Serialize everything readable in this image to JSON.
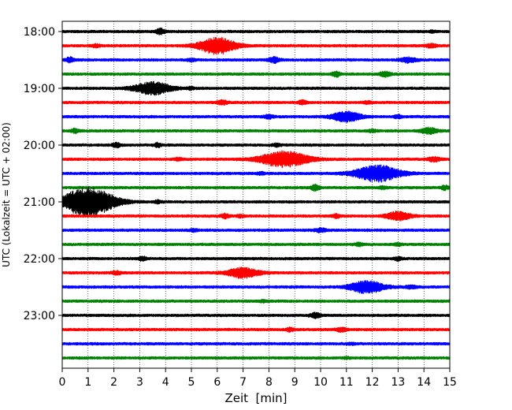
{
  "chart_data": {
    "type": "line",
    "title": "",
    "xlabel": "Zeit  [min]",
    "ylabel": "UTC (Lokalzeit = UTC + 02:00)",
    "xlim": [
      0,
      15
    ],
    "x_ticks": [
      "0",
      "1",
      "2",
      "3",
      "4",
      "5",
      "6",
      "7",
      "8",
      "9",
      "10",
      "11",
      "12",
      "13",
      "14",
      "15"
    ],
    "y_ticks": [
      "18:00",
      "19:00",
      "20:00",
      "21:00",
      "22:00",
      "23:00"
    ],
    "grid": "vertical dotted lines at every minute",
    "trace_interval_min": 15,
    "trace_color_cycle": [
      "#000000",
      "#ff0000",
      "#0000ff",
      "#008000"
    ],
    "traces": [
      {
        "start": "18:00",
        "bursts": [
          {
            "t": 3.8,
            "amp": 0.7,
            "dur": 0.35
          },
          {
            "t": 14.3,
            "amp": 0.25,
            "dur": 0.2
          }
        ]
      },
      {
        "start": "18:15",
        "bursts": [
          {
            "t": 6.0,
            "amp": 2.0,
            "dur": 1.4
          },
          {
            "t": 1.3,
            "amp": 0.3,
            "dur": 0.3
          },
          {
            "t": 14.3,
            "amp": 0.4,
            "dur": 0.4
          }
        ]
      },
      {
        "start": "18:30",
        "bursts": [
          {
            "t": 0.3,
            "amp": 0.6,
            "dur": 0.3
          },
          {
            "t": 8.2,
            "amp": 0.6,
            "dur": 0.4
          },
          {
            "t": 13.4,
            "amp": 0.55,
            "dur": 0.6
          },
          {
            "t": 5.0,
            "amp": 0.3,
            "dur": 0.3
          }
        ]
      },
      {
        "start": "18:45",
        "bursts": [
          {
            "t": 10.6,
            "amp": 0.6,
            "dur": 0.3
          },
          {
            "t": 12.5,
            "amp": 0.6,
            "dur": 0.4
          }
        ]
      },
      {
        "start": "19:00",
        "bursts": [
          {
            "t": 3.5,
            "amp": 1.5,
            "dur": 1.4
          },
          {
            "t": 5.0,
            "amp": 0.25,
            "dur": 0.3
          }
        ]
      },
      {
        "start": "19:15",
        "bursts": [
          {
            "t": 6.2,
            "amp": 0.5,
            "dur": 0.4
          },
          {
            "t": 9.3,
            "amp": 0.45,
            "dur": 0.3
          },
          {
            "t": 11.8,
            "amp": 0.3,
            "dur": 0.3
          }
        ]
      },
      {
        "start": "19:30",
        "bursts": [
          {
            "t": 11.0,
            "amp": 1.2,
            "dur": 1.1
          },
          {
            "t": 8.0,
            "amp": 0.4,
            "dur": 0.4
          },
          {
            "t": 13.0,
            "amp": 0.35,
            "dur": 0.3
          }
        ]
      },
      {
        "start": "19:45",
        "bursts": [
          {
            "t": 0.5,
            "amp": 0.5,
            "dur": 0.3
          },
          {
            "t": 12.0,
            "amp": 0.3,
            "dur": 0.3
          },
          {
            "t": 14.2,
            "amp": 0.7,
            "dur": 0.6
          }
        ]
      },
      {
        "start": "20:00",
        "bursts": [
          {
            "t": 2.1,
            "amp": 0.45,
            "dur": 0.3
          },
          {
            "t": 3.7,
            "amp": 0.5,
            "dur": 0.25
          },
          {
            "t": 8.3,
            "amp": 0.3,
            "dur": 0.3
          }
        ]
      },
      {
        "start": "20:15",
        "bursts": [
          {
            "t": 8.6,
            "amp": 1.9,
            "dur": 1.8
          },
          {
            "t": 4.5,
            "amp": 0.3,
            "dur": 0.3
          },
          {
            "t": 14.4,
            "amp": 0.45,
            "dur": 0.5
          }
        ]
      },
      {
        "start": "20:30",
        "bursts": [
          {
            "t": 12.2,
            "amp": 2.0,
            "dur": 1.7
          },
          {
            "t": 7.7,
            "amp": 0.3,
            "dur": 0.3
          }
        ]
      },
      {
        "start": "20:45",
        "bursts": [
          {
            "t": 9.8,
            "amp": 0.7,
            "dur": 0.3
          },
          {
            "t": 14.8,
            "amp": 0.45,
            "dur": 0.3
          },
          {
            "t": 12.4,
            "amp": 0.3,
            "dur": 0.3
          }
        ]
      },
      {
        "start": "21:00",
        "bursts": [
          {
            "t": 1.0,
            "amp": 3.5,
            "dur": 2.0
          },
          {
            "t": 3.7,
            "amp": 0.35,
            "dur": 0.25
          }
        ]
      },
      {
        "start": "21:15",
        "bursts": [
          {
            "t": 13.0,
            "amp": 1.0,
            "dur": 0.9
          },
          {
            "t": 6.3,
            "amp": 0.5,
            "dur": 0.3
          },
          {
            "t": 10.6,
            "amp": 0.4,
            "dur": 0.3
          },
          {
            "t": 6.9,
            "amp": 0.3,
            "dur": 0.25
          }
        ]
      },
      {
        "start": "21:30",
        "bursts": [
          {
            "t": 10.0,
            "amp": 0.45,
            "dur": 0.4
          },
          {
            "t": 5.1,
            "amp": 0.3,
            "dur": 0.3
          }
        ]
      },
      {
        "start": "21:45",
        "bursts": [
          {
            "t": 11.5,
            "amp": 0.35,
            "dur": 0.3
          },
          {
            "t": 13.0,
            "amp": 0.3,
            "dur": 0.3
          }
        ]
      },
      {
        "start": "22:00",
        "bursts": [
          {
            "t": 3.1,
            "amp": 0.5,
            "dur": 0.3
          },
          {
            "t": 13.0,
            "amp": 0.35,
            "dur": 0.3
          }
        ]
      },
      {
        "start": "22:15",
        "bursts": [
          {
            "t": 7.0,
            "amp": 1.2,
            "dur": 1.2
          },
          {
            "t": 2.1,
            "amp": 0.4,
            "dur": 0.35
          }
        ]
      },
      {
        "start": "22:30",
        "bursts": [
          {
            "t": 11.8,
            "amp": 1.5,
            "dur": 1.3
          },
          {
            "t": 13.5,
            "amp": 0.35,
            "dur": 0.4
          }
        ]
      },
      {
        "start": "22:45",
        "bursts": [
          {
            "t": 7.8,
            "amp": 0.25,
            "dur": 0.3
          }
        ]
      },
      {
        "start": "23:00",
        "bursts": [
          {
            "t": 9.8,
            "amp": 0.55,
            "dur": 0.4
          }
        ]
      },
      {
        "start": "23:15",
        "bursts": [
          {
            "t": 8.8,
            "amp": 0.45,
            "dur": 0.25
          },
          {
            "t": 10.8,
            "amp": 0.45,
            "dur": 0.4
          }
        ]
      },
      {
        "start": "23:30",
        "bursts": [
          {
            "t": 11.2,
            "amp": 0.2,
            "dur": 0.3
          }
        ]
      },
      {
        "start": "23:45",
        "bursts": [
          {
            "t": 11.0,
            "amp": 0.15,
            "dur": 0.3
          }
        ]
      }
    ]
  }
}
